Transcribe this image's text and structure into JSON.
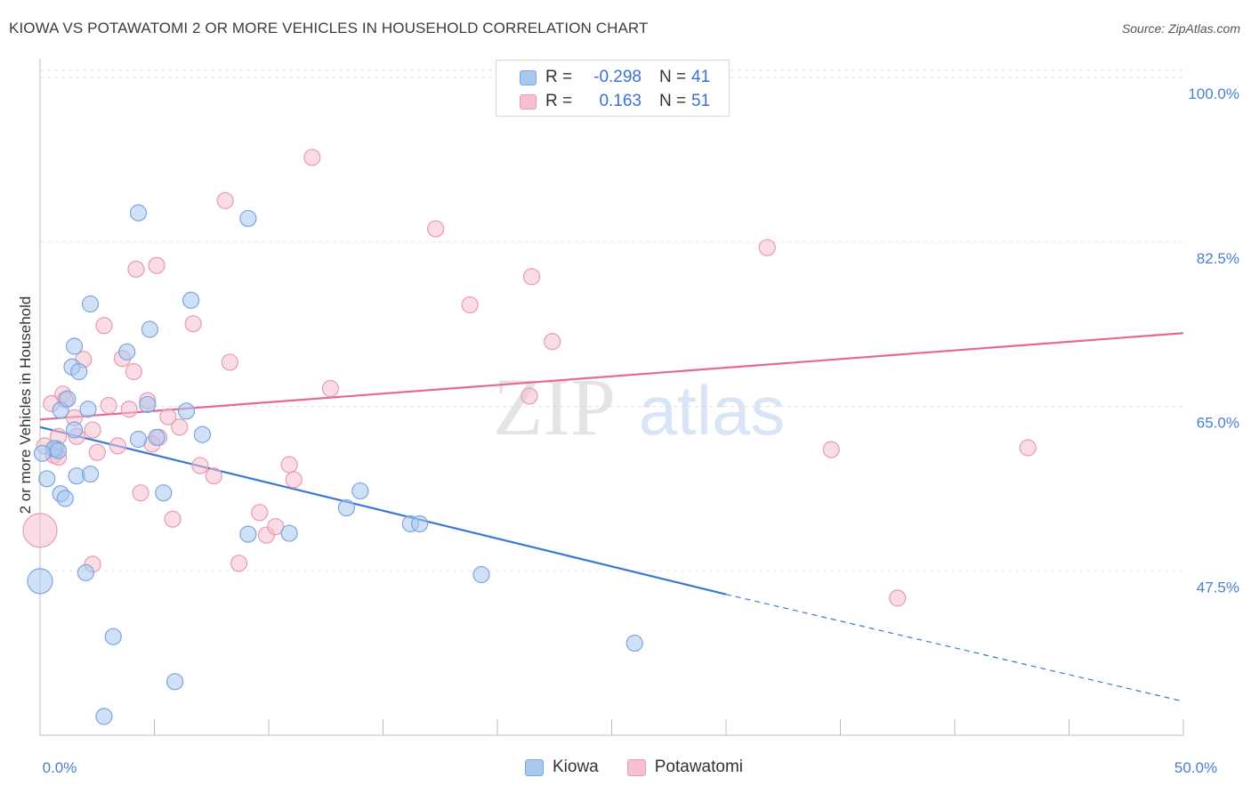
{
  "title": "KIOWA VS POTAWATOMI 2 OR MORE VEHICLES IN HOUSEHOLD CORRELATION CHART",
  "source": "Source: ZipAtlas.com",
  "watermark": {
    "zip": "ZIP",
    "atlas": "atlas"
  },
  "legend": {
    "r_label": "R =",
    "n_label": "N =",
    "rows": [
      {
        "name": "Kiowa",
        "r": "-0.298",
        "n": "41"
      },
      {
        "name": "Potawatomi",
        "r": "0.163",
        "n": "51"
      }
    ]
  },
  "colors": {
    "kiowa_fill": "#a9c8f0",
    "kiowa_stroke": "#7aa5de",
    "kiowa_line": "#3a78d4",
    "potawatomi_fill": "#f6c0d0",
    "potawatomi_stroke": "#e89ab2",
    "potawatomi_line": "#e36a93",
    "tick_text": "#4a7fd1"
  },
  "chart_data": {
    "type": "scatter",
    "ylabel": "2 or more Vehicles in Household",
    "xlim": [
      0,
      50
    ],
    "ylim": [
      30,
      102
    ],
    "x_tick_labels": [
      {
        "value": 0,
        "label": "0.0%"
      },
      {
        "value": 50,
        "label": "50.0%"
      }
    ],
    "y_ticks": [
      {
        "value": 47.5,
        "label": "47.5%"
      },
      {
        "value": 65.0,
        "label": "65.0%"
      },
      {
        "value": 82.5,
        "label": "82.5%"
      },
      {
        "value": 100.0,
        "label": "100.0%"
      }
    ],
    "x_minor_ticks": [
      0,
      5,
      10,
      15,
      20,
      25,
      30,
      35,
      40,
      45,
      50
    ],
    "grid": "horizontal dashed",
    "legend_position": "top-center",
    "series": [
      {
        "name": "Kiowa",
        "points": [
          [
            0.3,
            57.3
          ],
          [
            0.7,
            60.5
          ],
          [
            0.9,
            64.6
          ],
          [
            0.6,
            60.5
          ],
          [
            0.8,
            60.3
          ],
          [
            0.9,
            55.7
          ],
          [
            1.1,
            55.2
          ],
          [
            1.5,
            62.5
          ],
          [
            1.4,
            69.2
          ],
          [
            1.5,
            71.4
          ],
          [
            1.2,
            65.8
          ],
          [
            1.7,
            68.7
          ],
          [
            1.6,
            57.6
          ],
          [
            2.1,
            64.7
          ],
          [
            2.2,
            57.8
          ],
          [
            2.2,
            75.9
          ],
          [
            2.0,
            47.3
          ],
          [
            2.8,
            32.0
          ],
          [
            3.2,
            40.5
          ],
          [
            3.8,
            70.8
          ],
          [
            4.3,
            61.5
          ],
          [
            4.3,
            85.6
          ],
          [
            4.7,
            65.2
          ],
          [
            4.8,
            73.2
          ],
          [
            5.1,
            61.7
          ],
          [
            5.4,
            55.8
          ],
          [
            5.9,
            35.7
          ],
          [
            6.4,
            64.5
          ],
          [
            6.6,
            76.3
          ],
          [
            7.1,
            62.0
          ],
          [
            9.1,
            51.4
          ],
          [
            9.1,
            85.0
          ],
          [
            10.9,
            51.5
          ],
          [
            13.4,
            54.2
          ],
          [
            14.0,
            56.0
          ],
          [
            16.2,
            52.5
          ],
          [
            16.6,
            52.5
          ],
          [
            19.3,
            47.1
          ],
          [
            26.0,
            39.8
          ],
          [
            0.0,
            46.4
          ],
          [
            0.1,
            60.0
          ]
        ],
        "trend_solid": [
          [
            0,
            62.8
          ],
          [
            30,
            45.0
          ]
        ],
        "trend_dashed": [
          [
            30,
            45.0
          ],
          [
            50,
            33.6
          ]
        ]
      },
      {
        "name": "Potawatomi",
        "points": [
          [
            0.0,
            51.8
          ],
          [
            0.6,
            59.8
          ],
          [
            0.8,
            61.8
          ],
          [
            0.8,
            59.6
          ],
          [
            1.0,
            66.3
          ],
          [
            1.1,
            65.7
          ],
          [
            1.5,
            63.8
          ],
          [
            1.6,
            61.8
          ],
          [
            1.9,
            70.0
          ],
          [
            2.3,
            62.5
          ],
          [
            2.3,
            48.2
          ],
          [
            2.5,
            60.1
          ],
          [
            2.8,
            73.6
          ],
          [
            3.0,
            65.1
          ],
          [
            3.4,
            60.8
          ],
          [
            3.6,
            70.1
          ],
          [
            3.9,
            64.7
          ],
          [
            4.1,
            68.7
          ],
          [
            4.2,
            79.6
          ],
          [
            4.4,
            55.8
          ],
          [
            4.7,
            65.6
          ],
          [
            4.9,
            61.0
          ],
          [
            5.1,
            80.0
          ],
          [
            5.2,
            61.7
          ],
          [
            5.6,
            63.9
          ],
          [
            5.8,
            53.0
          ],
          [
            6.1,
            62.8
          ],
          [
            6.7,
            73.8
          ],
          [
            7.0,
            58.7
          ],
          [
            7.6,
            57.6
          ],
          [
            8.1,
            86.9
          ],
          [
            8.3,
            69.7
          ],
          [
            8.7,
            48.3
          ],
          [
            9.6,
            53.7
          ],
          [
            9.9,
            51.3
          ],
          [
            10.3,
            52.2
          ],
          [
            10.9,
            58.8
          ],
          [
            11.1,
            57.2
          ],
          [
            11.9,
            91.5
          ],
          [
            12.7,
            66.9
          ],
          [
            17.3,
            83.9
          ],
          [
            18.8,
            75.8
          ],
          [
            21.4,
            66.1
          ],
          [
            21.5,
            78.8
          ],
          [
            22.4,
            71.9
          ],
          [
            31.8,
            81.9
          ],
          [
            34.6,
            60.4
          ],
          [
            37.5,
            44.6
          ],
          [
            43.2,
            60.6
          ],
          [
            0.2,
            60.8
          ],
          [
            0.5,
            65.3
          ]
        ],
        "trend_solid": [
          [
            0,
            63.6
          ],
          [
            50,
            72.8
          ]
        ]
      }
    ]
  }
}
